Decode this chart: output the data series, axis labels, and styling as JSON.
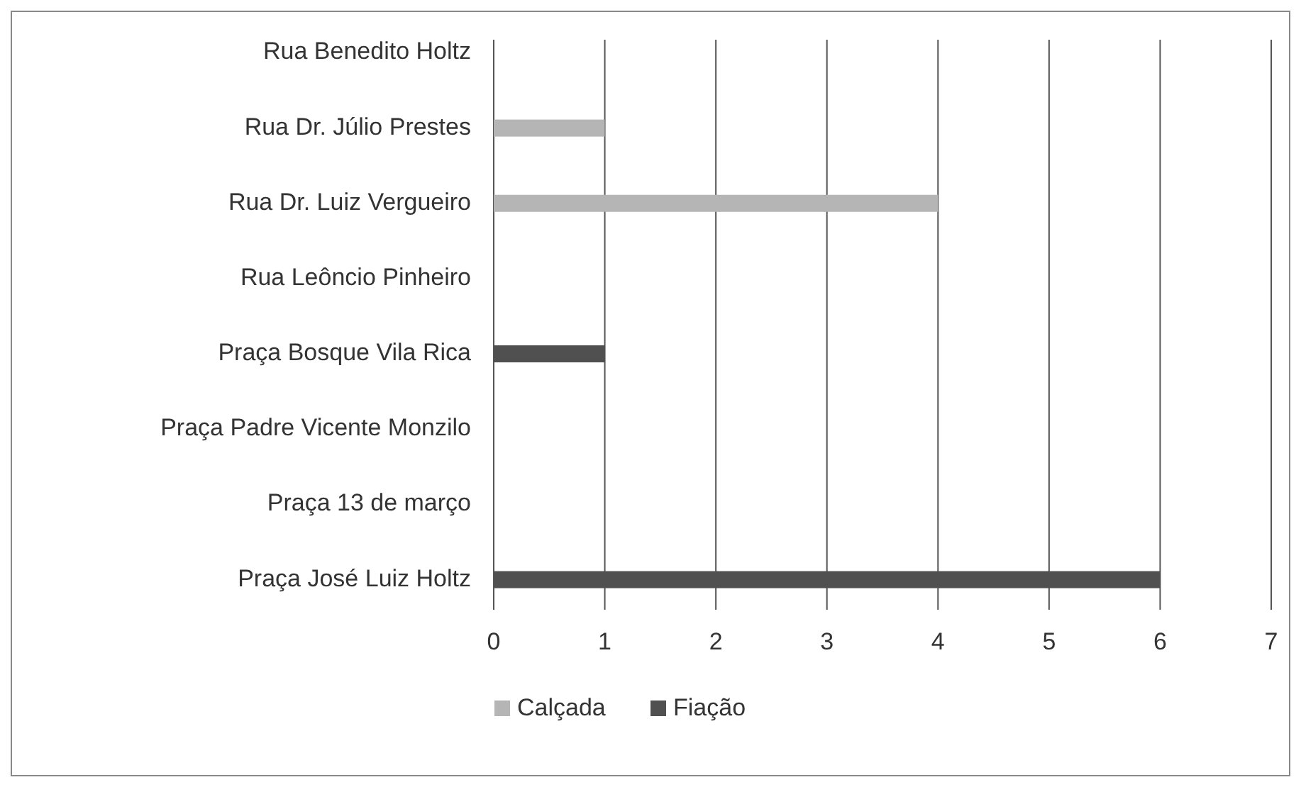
{
  "chart_data": {
    "type": "bar",
    "orientation": "horizontal",
    "categories": [
      "Rua Benedito Holtz",
      "Rua Dr. Júlio Prestes",
      "Rua Dr. Luiz Vergueiro",
      "Rua Leôncio Pinheiro",
      "Praça Bosque Vila Rica",
      "Praça Padre Vicente Monzilo",
      "Praça 13 de março",
      "Praça José Luiz Holtz"
    ],
    "series": [
      {
        "name": "Calçada",
        "color": "#b5b5b5",
        "values": [
          0,
          1,
          4,
          0,
          0,
          0,
          0,
          0
        ]
      },
      {
        "name": "Fiação",
        "color": "#505050",
        "values": [
          0,
          0,
          0,
          0,
          1,
          0,
          0,
          6
        ]
      }
    ],
    "xlim": [
      0,
      7
    ],
    "xticks": [
      0,
      1,
      2,
      3,
      4,
      5,
      6,
      7
    ],
    "grid": "x",
    "legend": "bottom"
  }
}
